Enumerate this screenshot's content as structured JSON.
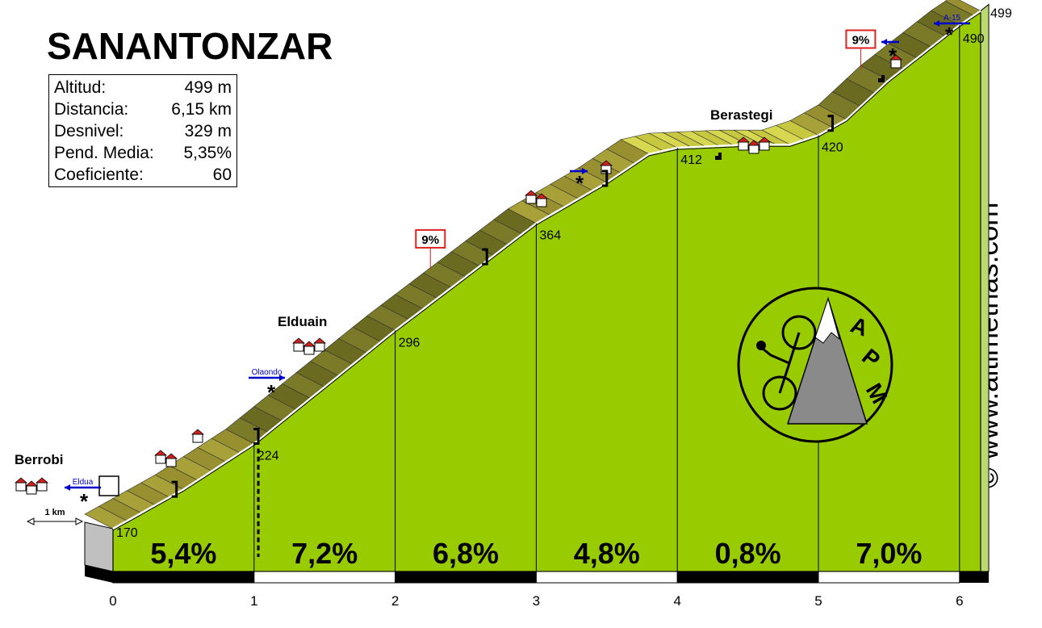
{
  "title": "SANANTONZAR",
  "stats": [
    {
      "label": "Altitud:",
      "value": "499 m"
    },
    {
      "label": "Distancia:",
      "value": "6,15 km"
    },
    {
      "label": "Desnivel:",
      "value": "329 m"
    },
    {
      "label": "Pend. Media:",
      "value": "5,35%"
    },
    {
      "label": "Coeficiente:",
      "value": "60"
    }
  ],
  "watermark": "© www.altimetrias.com",
  "logo_text": [
    "A",
    "P",
    "M"
  ],
  "scale_label": "1 km",
  "chart_data": {
    "type": "area",
    "x_unit": "km",
    "x_ticks": [
      "0",
      "1",
      "2",
      "3",
      "4",
      "5",
      "6"
    ],
    "xlim": [
      0,
      6.15
    ],
    "profile": [
      {
        "x": 0,
        "y": 170
      },
      {
        "x": 0.5,
        "y": 195
      },
      {
        "x": 1,
        "y": 224
      },
      {
        "x": 1.5,
        "y": 260
      },
      {
        "x": 2,
        "y": 296
      },
      {
        "x": 2.5,
        "y": 330
      },
      {
        "x": 3,
        "y": 364
      },
      {
        "x": 3.5,
        "y": 390
      },
      {
        "x": 3.8,
        "y": 408
      },
      {
        "x": 4,
        "y": 412
      },
      {
        "x": 4.5,
        "y": 414
      },
      {
        "x": 4.8,
        "y": 414
      },
      {
        "x": 5,
        "y": 420
      },
      {
        "x": 5.2,
        "y": 430
      },
      {
        "x": 5.5,
        "y": 455
      },
      {
        "x": 6,
        "y": 490
      },
      {
        "x": 6.15,
        "y": 499
      }
    ],
    "segments": [
      {
        "from": 0,
        "to": 1,
        "gradient": "5,4%"
      },
      {
        "from": 1,
        "to": 2,
        "gradient": "7,2%"
      },
      {
        "from": 2,
        "to": 3,
        "gradient": "6,8%"
      },
      {
        "from": 3,
        "to": 4,
        "gradient": "4,8%"
      },
      {
        "from": 4,
        "to": 5,
        "gradient": "0,8%"
      },
      {
        "from": 5,
        "to": 6,
        "gradient": "7,0%"
      }
    ],
    "km_altitudes": [
      {
        "x": 0,
        "label": "170"
      },
      {
        "x": 1,
        "label": "224"
      },
      {
        "x": 2,
        "label": "296"
      },
      {
        "x": 3,
        "label": "364"
      },
      {
        "x": 4,
        "label": "412"
      },
      {
        "x": 5,
        "label": "420"
      },
      {
        "x": 6,
        "label": "490"
      },
      {
        "x": 6.15,
        "label": "499"
      }
    ],
    "max_gradient_badges": [
      {
        "x": 2.35,
        "label": "9%"
      },
      {
        "x": 5.4,
        "label": "9%"
      }
    ],
    "places": [
      {
        "name": "Berrobi",
        "x": 0
      },
      {
        "name": "Elduain",
        "x": 1.3
      },
      {
        "name": "Berastegi",
        "x": 4.4
      }
    ],
    "junctions": [
      {
        "x": 0,
        "label": "Eldua"
      },
      {
        "x": 1.05,
        "label": "Olaondo"
      },
      {
        "x": 3.3,
        "label": ""
      },
      {
        "x": 5.5,
        "label": ""
      },
      {
        "x": 5.9,
        "label": "A-15"
      }
    ],
    "colors": {
      "fill": "#99cc00",
      "road_light": "#d8d850",
      "road_mid": "#a8a038",
      "road_dark": "#7a7a28",
      "road_steep": "#6e3a10",
      "badge": "#dd2222",
      "arrow": "#0000cc"
    }
  }
}
